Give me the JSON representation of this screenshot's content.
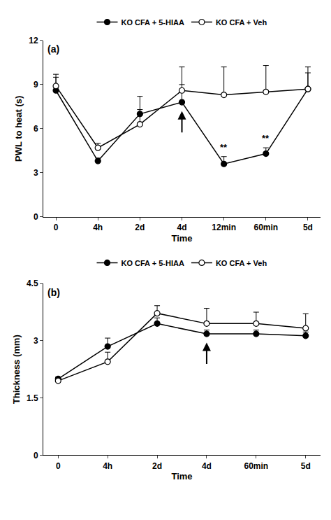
{
  "chart_data": [
    {
      "type": "line",
      "panel_label": "(a)",
      "x_label": "Time",
      "y_label": "PWL to heat (s)",
      "categories": [
        "0",
        "4h",
        "2d",
        "4d",
        "12min",
        "60min",
        "5d"
      ],
      "series": [
        {
          "name": "KO CFA + 5-HIAA",
          "color": "#000000",
          "marker": "filled",
          "line_style": "solid",
          "values": [
            8.6,
            3.8,
            7.0,
            7.8,
            3.6,
            4.3,
            8.7
          ],
          "error": [
            0.9,
            0.2,
            1.2,
            1.2,
            0.5,
            0.4,
            1.1
          ]
        },
        {
          "name": "KO CFA + Veh",
          "color": "#000000",
          "marker": "open",
          "line_style": "solid",
          "values": [
            8.9,
            4.7,
            6.3,
            8.6,
            8.3,
            8.5,
            8.7
          ],
          "error": [
            0.8,
            0.3,
            1.0,
            1.6,
            1.9,
            1.8,
            1.5
          ]
        }
      ],
      "ylim": [
        0,
        12
      ],
      "yticks": [
        0,
        3,
        6,
        9,
        12
      ],
      "legend": "top",
      "annotations": [
        {
          "text": "**",
          "x": "12min",
          "y": 4.3
        },
        {
          "text": "**",
          "x": "60min",
          "y": 4.9
        }
      ],
      "arrow_at": {
        "x": "4d",
        "y": 7.2
      }
    },
    {
      "type": "line",
      "panel_label": "(b)",
      "x_label": "Time",
      "y_label": "Thickness (mm)",
      "categories": [
        "0",
        "4h",
        "2d",
        "4d",
        "60min",
        "5d"
      ],
      "series": [
        {
          "name": "KO CFA + 5-HIAA",
          "color": "#000000",
          "marker": "filled",
          "line_style": "solid",
          "values": [
            2.0,
            2.85,
            3.45,
            3.18,
            3.18,
            3.13
          ],
          "error": [
            0.05,
            0.22,
            0.15,
            0.1,
            0.1,
            0.1
          ]
        },
        {
          "name": "KO CFA + Veh",
          "color": "#000000",
          "marker": "open",
          "line_style": "solid",
          "values": [
            1.95,
            2.45,
            3.72,
            3.45,
            3.45,
            3.33
          ],
          "error": [
            0.05,
            0.25,
            0.2,
            0.4,
            0.3,
            0.38
          ]
        }
      ],
      "ylim": [
        0,
        4.5
      ],
      "yticks": [
        0,
        1.5,
        3,
        4.5
      ],
      "legend": "top",
      "annotations": [],
      "arrow_at": {
        "x": "4d",
        "y": 2.95
      }
    }
  ]
}
